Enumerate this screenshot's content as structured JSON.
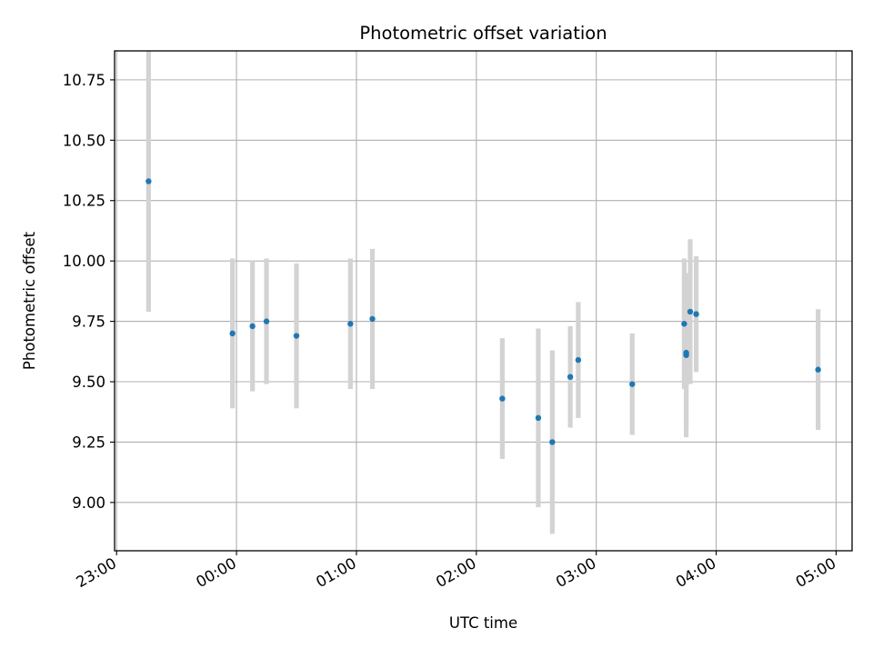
{
  "chart_data": {
    "type": "scatter",
    "title": "Photometric offset variation",
    "xlabel": "UTC time",
    "ylabel": "Photometric offset",
    "x_axis_kind": "time",
    "x_unit": "UTC, HH:MM (day boundary between 23:00 and 00:00)",
    "xlim": [
      "22:59",
      "05:08"
    ],
    "ylim": [
      8.8,
      10.87
    ],
    "x_ticks": [
      "23:00",
      "00:00",
      "01:00",
      "02:00",
      "03:00",
      "04:00",
      "05:00"
    ],
    "y_ticks": [
      9.0,
      9.25,
      9.5,
      9.75,
      10.0,
      10.25,
      10.5,
      10.75
    ],
    "y_tick_labels": [
      "9.00",
      "9.25",
      "9.50",
      "9.75",
      "10.00",
      "10.25",
      "10.50",
      "10.75"
    ],
    "grid": true,
    "colors": {
      "marker": "#1f77b4",
      "errorbar": "#d3d3d3",
      "grid": "#b0b0b0"
    },
    "series": [
      {
        "points": [
          {
            "time": "23:16",
            "y": 10.33,
            "err": 0.54
          },
          {
            "time": "23:58",
            "y": 9.7,
            "err": 0.31
          },
          {
            "time": "00:08",
            "y": 9.73,
            "err": 0.27
          },
          {
            "time": "00:15",
            "y": 9.75,
            "err": 0.26
          },
          {
            "time": "00:30",
            "y": 9.69,
            "err": 0.3
          },
          {
            "time": "00:57",
            "y": 9.74,
            "err": 0.27
          },
          {
            "time": "01:08",
            "y": 9.76,
            "err": 0.29
          },
          {
            "time": "02:13",
            "y": 9.43,
            "err": 0.25
          },
          {
            "time": "02:31",
            "y": 9.35,
            "err": 0.37
          },
          {
            "time": "02:38",
            "y": 9.25,
            "err": 0.38
          },
          {
            "time": "02:47",
            "y": 9.52,
            "err": 0.21
          },
          {
            "time": "02:51",
            "y": 9.59,
            "err": 0.24
          },
          {
            "time": "03:18",
            "y": 9.49,
            "err": 0.21
          },
          {
            "time": "03:44",
            "y": 9.74,
            "err": 0.27
          },
          {
            "time": "03:45",
            "y": 9.61,
            "err": 0.34
          },
          {
            "time": "03:45",
            "y": 9.62,
            "err": 0.31
          },
          {
            "time": "03:47",
            "y": 9.79,
            "err": 0.3
          },
          {
            "time": "03:50",
            "y": 9.78,
            "err": 0.24
          },
          {
            "time": "04:51",
            "y": 9.55,
            "err": 0.25
          }
        ]
      }
    ]
  }
}
